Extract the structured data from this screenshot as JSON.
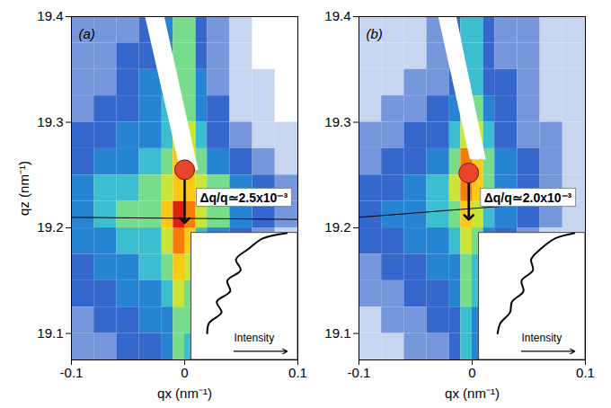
{
  "chart_data": [
    {
      "type": "heatmap",
      "panel_label": "(a)",
      "x_label": "qx (nm⁻¹)",
      "y_label": "qz (nm⁻¹)",
      "xlim": [
        -0.1,
        0.1
      ],
      "xticks": [
        -0.1,
        0,
        0.1
      ],
      "ylim": [
        19.075,
        19.4
      ],
      "yticks": [
        19.1,
        19.2,
        19.3,
        19.4
      ],
      "cells": {
        "qx_edges": [
          -0.1,
          -0.08,
          -0.06,
          -0.04,
          -0.02,
          -0.01,
          0,
          0.01,
          0.02,
          0.04,
          0.06,
          0.08,
          0.1
        ],
        "qz_edges": [
          19.4,
          19.375,
          19.35,
          19.325,
          19.3,
          19.275,
          19.25,
          19.225,
          19.2,
          19.175,
          19.15,
          19.125,
          19.1,
          19.075
        ],
        "intensity": [
          [
            2,
            2,
            2,
            3,
            4,
            6,
            6,
            3,
            2,
            1,
            0,
            0
          ],
          [
            2,
            2,
            3,
            3,
            4,
            6,
            6,
            3,
            2,
            1,
            0,
            0
          ],
          [
            2,
            2,
            3,
            4,
            4,
            6,
            6,
            4,
            2,
            1,
            1,
            0
          ],
          [
            2,
            3,
            3,
            4,
            5,
            6,
            6,
            4,
            3,
            1,
            1,
            0
          ],
          [
            3,
            3,
            4,
            4,
            5,
            7,
            7,
            5,
            3,
            2,
            1,
            1
          ],
          [
            3,
            4,
            4,
            5,
            6,
            8,
            8,
            6,
            4,
            3,
            2,
            1
          ],
          [
            4,
            5,
            5,
            6,
            7,
            8,
            8,
            7,
            6,
            4,
            3,
            2
          ],
          [
            4,
            5,
            6,
            6,
            8,
            10,
            9,
            7,
            6,
            4,
            3,
            2
          ],
          [
            4,
            4,
            5,
            5,
            7,
            9,
            8,
            5,
            4,
            3,
            2,
            1
          ],
          [
            3,
            4,
            4,
            5,
            6,
            8,
            7,
            4,
            3,
            2,
            1,
            1
          ],
          [
            3,
            3,
            4,
            4,
            5,
            7,
            6,
            3,
            2,
            1,
            1,
            1
          ],
          [
            2,
            3,
            3,
            4,
            4,
            6,
            6,
            3,
            2,
            1,
            1,
            0
          ],
          [
            2,
            2,
            3,
            3,
            4,
            6,
            5,
            2,
            1,
            1,
            0,
            0
          ]
        ]
      },
      "masked_region": {
        "qx": [
          -0.035,
          -0.018,
          0.012,
          -0.004
        ],
        "qz": [
          19.4,
          19.4,
          19.255,
          19.255
        ]
      },
      "reference_line": {
        "qx": [
          -0.1,
          0.1
        ],
        "qz": [
          19.21,
          19.208
        ]
      },
      "peak_marker": {
        "qx": 0,
        "qz": 19.255,
        "color": "#e8452c"
      },
      "annotation": {
        "text": "Δq/q≃2.5x10⁻³",
        "qx": 0,
        "qz_from": 19.25,
        "qz_to": 19.207
      },
      "profile": {
        "label": "Intensity",
        "qz": [
          19.195,
          19.19,
          19.18,
          19.17,
          19.16,
          19.15,
          19.14,
          19.13,
          19.12,
          19.11,
          19.1
        ],
        "intensity": [
          0.95,
          0.7,
          0.55,
          0.42,
          0.47,
          0.33,
          0.36,
          0.22,
          0.27,
          0.14,
          0.12
        ]
      }
    },
    {
      "type": "heatmap",
      "panel_label": "(b)",
      "x_label": "qx (nm⁻¹)",
      "xlim": [
        -0.1,
        0.1
      ],
      "xticks": [
        -0.1,
        0,
        0.1
      ],
      "ylim": [
        19.075,
        19.4
      ],
      "yticks": [
        19.1,
        19.2,
        19.3,
        19.4
      ],
      "cells": {
        "qx_edges": [
          -0.1,
          -0.08,
          -0.06,
          -0.04,
          -0.02,
          -0.01,
          0,
          0.01,
          0.02,
          0.04,
          0.06,
          0.08,
          0.1
        ],
        "qz_edges": [
          19.4,
          19.375,
          19.35,
          19.325,
          19.3,
          19.275,
          19.25,
          19.225,
          19.2,
          19.175,
          19.15,
          19.125,
          19.1,
          19.075
        ],
        "intensity": [
          [
            1,
            1,
            1,
            2,
            3,
            5,
            5,
            3,
            2,
            2,
            1,
            1
          ],
          [
            1,
            1,
            1,
            2,
            3,
            5,
            5,
            3,
            2,
            2,
            1,
            1
          ],
          [
            1,
            1,
            2,
            2,
            3,
            5,
            5,
            3,
            3,
            2,
            1,
            1
          ],
          [
            1,
            2,
            2,
            3,
            4,
            6,
            6,
            4,
            3,
            2,
            1,
            1
          ],
          [
            2,
            2,
            3,
            3,
            5,
            7,
            7,
            5,
            3,
            2,
            2,
            1
          ],
          [
            2,
            3,
            3,
            4,
            6,
            9,
            8,
            6,
            4,
            3,
            2,
            1
          ],
          [
            3,
            3,
            4,
            5,
            7,
            9,
            8,
            6,
            4,
            3,
            2,
            1
          ],
          [
            3,
            4,
            4,
            5,
            6,
            8,
            7,
            5,
            4,
            3,
            2,
            1
          ],
          [
            3,
            3,
            4,
            4,
            5,
            7,
            6,
            4,
            3,
            2,
            1,
            1
          ],
          [
            2,
            3,
            3,
            4,
            4,
            6,
            5,
            3,
            2,
            1,
            1,
            0
          ],
          [
            2,
            2,
            3,
            3,
            4,
            6,
            5,
            3,
            2,
            1,
            0,
            0
          ],
          [
            1,
            2,
            2,
            3,
            3,
            5,
            4,
            2,
            1,
            1,
            0,
            0
          ],
          [
            1,
            1,
            2,
            2,
            3,
            5,
            4,
            2,
            1,
            0,
            0,
            0
          ]
        ]
      },
      "masked_region": {
        "qx": [
          -0.03,
          -0.014,
          0.012,
          -0.002
        ],
        "qz": [
          19.4,
          19.4,
          19.265,
          19.265
        ]
      },
      "reference_line": {
        "qx": [
          -0.1,
          0.08
        ],
        "qz": [
          19.21,
          19.225
        ]
      },
      "peak_marker": {
        "qx": -0.003,
        "qz": 19.252,
        "color": "#e8452c"
      },
      "annotation": {
        "text": "Δq/q≃2.0x10⁻³",
        "qx": -0.003,
        "qz_from": 19.247,
        "qz_to": 19.21
      },
      "profile": {
        "label": "Intensity",
        "qz": [
          19.195,
          19.19,
          19.18,
          19.17,
          19.16,
          19.15,
          19.14,
          19.13,
          19.12,
          19.11,
          19.1
        ],
        "intensity": [
          0.95,
          0.75,
          0.6,
          0.5,
          0.52,
          0.4,
          0.42,
          0.3,
          0.28,
          0.18,
          0.15
        ]
      }
    }
  ]
}
